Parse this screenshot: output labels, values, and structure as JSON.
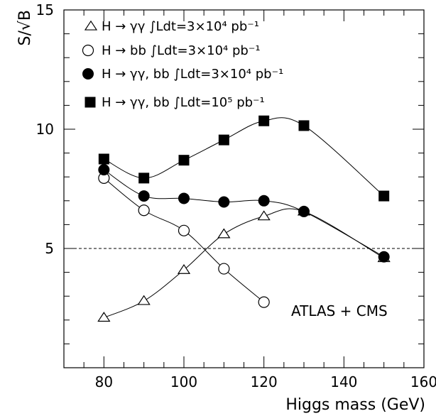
{
  "chart_data": {
    "type": "line",
    "xlabel": "Higgs mass (GeV)",
    "ylabel": "S/√B",
    "xlim": [
      70,
      160
    ],
    "ylim": [
      0,
      15
    ],
    "xticks": [
      "80",
      "100",
      "120",
      "140",
      "160"
    ],
    "yticks": [
      "5",
      "10",
      "15"
    ],
    "annotation": "ATLAS + CMS",
    "reference_line": {
      "y": 5,
      "style": "dashed"
    },
    "series": [
      {
        "name": "H → γγ ∫Ldt=3×10⁴ pb⁻¹",
        "marker": "open-triangle",
        "x": [
          80,
          90,
          100,
          110,
          120,
          130,
          150
        ],
        "y": [
          2.1,
          2.8,
          4.1,
          5.6,
          6.35,
          6.55,
          4.6
        ]
      },
      {
        "name": "H → bb ∫Ldt=3×10⁴ pb⁻¹",
        "marker": "open-circle",
        "x": [
          80,
          90,
          100,
          110,
          120
        ],
        "y": [
          7.95,
          6.6,
          5.75,
          4.15,
          2.75
        ]
      },
      {
        "name": "H → γγ, bb ∫Ldt=3×10⁴ pb⁻¹",
        "marker": "filled-circle",
        "x": [
          80,
          90,
          100,
          110,
          120,
          130,
          150
        ],
        "y": [
          8.3,
          7.2,
          7.1,
          6.95,
          7.0,
          6.55,
          4.65
        ]
      },
      {
        "name": "H → γγ, bb ∫Ldt=10⁵ pb⁻¹",
        "marker": "filled-square",
        "x": [
          80,
          90,
          100,
          110,
          120,
          130,
          150
        ],
        "y": [
          8.75,
          7.95,
          8.7,
          9.55,
          10.35,
          10.15,
          7.2
        ]
      }
    ]
  }
}
